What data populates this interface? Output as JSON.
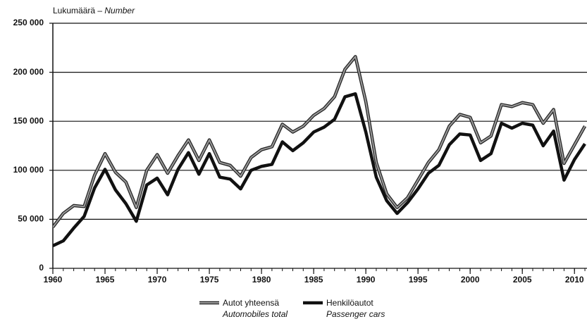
{
  "chart_data": {
    "type": "line",
    "ylabel": "Lukumäärä –",
    "ylabel_en": "Number",
    "x": [
      1960,
      1961,
      1962,
      1963,
      1964,
      1965,
      1966,
      1967,
      1968,
      1969,
      1970,
      1971,
      1972,
      1973,
      1974,
      1975,
      1976,
      1977,
      1978,
      1979,
      1980,
      1981,
      1982,
      1983,
      1984,
      1985,
      1986,
      1987,
      1988,
      1989,
      1990,
      1991,
      1992,
      1993,
      1994,
      1995,
      1996,
      1997,
      1998,
      1999,
      2000,
      2001,
      2002,
      2003,
      2004,
      2005,
      2006,
      2007,
      2008,
      2009,
      2010,
      2011
    ],
    "series": [
      {
        "name": "Autot yhteensä",
        "name_en": "Automobiles total",
        "color": "#9a9a9a",
        "values": [
          42000,
          56000,
          64000,
          63000,
          95000,
          117000,
          98000,
          88000,
          62000,
          100000,
          116000,
          97000,
          115000,
          131000,
          110000,
          131000,
          108000,
          105000,
          94000,
          113000,
          121000,
          124000,
          147000,
          139000,
          145000,
          156000,
          163000,
          175000,
          203000,
          216000,
          170000,
          108000,
          76000,
          62000,
          72000,
          90000,
          108000,
          121000,
          145000,
          157000,
          154000,
          128000,
          135000,
          167000,
          165000,
          169000,
          167000,
          148000,
          162000,
          107000,
          126000,
          145000
        ]
      },
      {
        "name": "Henkilöautot",
        "name_en": "Passenger cars",
        "color": "#111111",
        "values": [
          23000,
          28000,
          41000,
          53000,
          82000,
          101000,
          80000,
          66000,
          48000,
          85000,
          92000,
          75000,
          101000,
          118000,
          96000,
          117000,
          93000,
          91000,
          81000,
          100000,
          104000,
          106000,
          129000,
          120000,
          128000,
          139000,
          144000,
          152000,
          175000,
          178000,
          139000,
          93000,
          69000,
          56000,
          67000,
          81000,
          97000,
          105000,
          126000,
          137000,
          136000,
          110000,
          117000,
          148000,
          143000,
          148000,
          146000,
          125000,
          140000,
          90000,
          111000,
          127000
        ]
      }
    ],
    "xlim": [
      1960,
      2011.2
    ],
    "xticks": [
      1960,
      1965,
      1970,
      1975,
      1980,
      1985,
      1990,
      1995,
      2000,
      2005,
      2010
    ],
    "ylim": [
      0,
      250000
    ],
    "yticks": [
      0,
      {
        "value": 50000,
        "label": "50 000"
      },
      {
        "value": 100000,
        "label": "100 000"
      },
      {
        "value": 150000,
        "label": "150 000"
      },
      {
        "value": 200000,
        "label": "200 000"
      },
      {
        "value": 250000,
        "label": "250 000"
      }
    ],
    "grid": true
  }
}
